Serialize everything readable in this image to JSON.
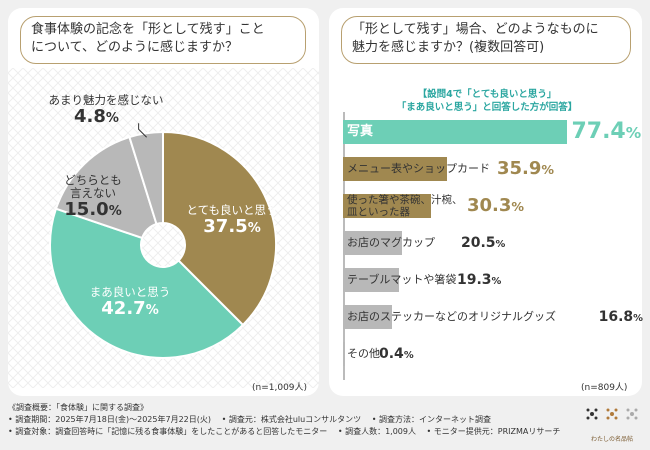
{
  "left": {
    "question_lines": [
      "食事体験の記念を「形として残す」こと",
      "について、どのように感じますか？"
    ],
    "n_label": "(n=1,009人)"
  },
  "right": {
    "question_lines": [
      "「形として残す」場合、どのようなものに",
      "魅力を感じますか？(複数回答可)"
    ],
    "note_lines": [
      "【設問4で「とても良いと思う」",
      "「まあ良いと思う」と回答した方が回答】"
    ],
    "n_label": "(n=809人)"
  },
  "chart_data": [
    {
      "type": "pie",
      "title": "食事体験の記念を「形として残す」ことについて、どのように感じますか？",
      "labels": [
        "とても良いと思う",
        "まあ良いと思う",
        "どちらとも言えない",
        "あまり魅力を感じない"
      ],
      "values": [
        37.5,
        42.7,
        15.0,
        4.8
      ],
      "value_text": [
        "37.5%",
        "42.7%",
        "15.0%",
        "4.8%"
      ],
      "label_display": [
        [
          "とても良いと思う"
        ],
        [
          "まあ良いと思う"
        ],
        [
          "どちらとも",
          "言えない"
        ],
        [
          "あまり魅力を感じない"
        ]
      ],
      "colors": [
        "#a08850",
        "#6dcfb6",
        "#b8b8b8",
        "#b8b8b8"
      ],
      "donut": true,
      "n": "1,009人"
    },
    {
      "type": "bar",
      "orientation": "horizontal",
      "title": "「形として残す」場合、どのようなものに魅力を感じますか？(複数回答可)",
      "categories": [
        "写真",
        "メニュー表やショップカード",
        "使った箸や茶碗、汁椀、皿といった器",
        "お店のマグカップ",
        "テーブルマットや箸袋",
        "お店のステッカーなどのオリジナルグッズ",
        "その他"
      ],
      "label_display": [
        [
          "写真"
        ],
        [
          "メニュー表やショップカード"
        ],
        [
          "使った箸や茶碗、汁椀、",
          "皿といった器"
        ],
        [
          "お店のマグカップ"
        ],
        [
          "テーブルマットや箸袋"
        ],
        [
          "お店のステッカーなどのオリジナルグッズ"
        ],
        [
          "その他"
        ]
      ],
      "values": [
        77.4,
        35.9,
        30.3,
        20.5,
        19.3,
        16.8,
        0.4
      ],
      "value_text": [
        "77.4%",
        "35.9%",
        "30.3%",
        "20.5%",
        "19.3%",
        "16.8%",
        "0.4%"
      ],
      "colors": [
        "#6dcfb6",
        "#a08850",
        "#a08850",
        "#b8b8b8",
        "#b8b8b8",
        "#b8b8b8",
        "#b8b8b8"
      ],
      "value_colors": [
        "#6dcfb6",
        "#a08850",
        "#a08850",
        "#333333",
        "#333333",
        "#333333",
        "#333333"
      ],
      "xlim": [
        0,
        100
      ],
      "n": "809人"
    }
  ],
  "footer": {
    "line1": "《調査概要：「食体験」に関する調査》",
    "line2": [
      "• 調査期間：2025年7月18日(金)～2025年7月22日(火)",
      "• 調査元：株式会社uluコンサルタンツ",
      "• 調査方法：インターネット調査"
    ],
    "line3": [
      "• 調査対象：調査回答時に「記憶に残る食事体験」をしたことがあると回答したモニター",
      "• 調査人数：1,009人",
      "• モニター提供元：PRIZMAリサーチ"
    ]
  },
  "brand": {
    "name": "わたしの名品帖"
  }
}
